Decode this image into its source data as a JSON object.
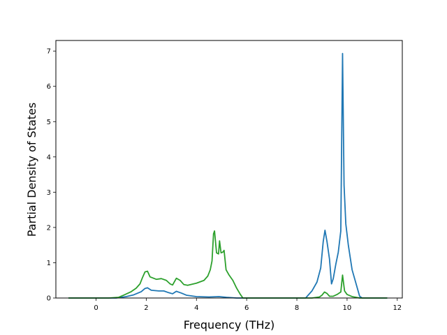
{
  "chart_data": {
    "type": "line",
    "title": "",
    "xlabel": "Frequency (THz)",
    "ylabel": "Partial Density of States",
    "xlim": [
      -1.6,
      12.2
    ],
    "ylim": [
      0,
      7.3
    ],
    "xticks": [
      0,
      2,
      4,
      6,
      8,
      10,
      12
    ],
    "yticks": [
      0,
      1,
      2,
      3,
      4,
      5,
      6,
      7
    ],
    "grid": false,
    "legend": "none",
    "series": [
      {
        "color": "#1f77b4",
        "points": [
          [
            -1.1,
            0.0
          ],
          [
            0.8,
            0.0
          ],
          [
            1.2,
            0.04
          ],
          [
            1.5,
            0.09
          ],
          [
            1.8,
            0.18
          ],
          [
            1.95,
            0.27
          ],
          [
            2.05,
            0.29
          ],
          [
            2.2,
            0.22
          ],
          [
            2.5,
            0.2
          ],
          [
            2.7,
            0.2
          ],
          [
            2.9,
            0.15
          ],
          [
            3.05,
            0.12
          ],
          [
            3.2,
            0.19
          ],
          [
            3.4,
            0.14
          ],
          [
            3.6,
            0.08
          ],
          [
            4.0,
            0.04
          ],
          [
            4.5,
            0.03
          ],
          [
            4.9,
            0.04
          ],
          [
            5.2,
            0.02
          ],
          [
            5.6,
            0.0
          ],
          [
            8.35,
            0.0
          ],
          [
            8.6,
            0.2
          ],
          [
            8.8,
            0.45
          ],
          [
            8.95,
            0.85
          ],
          [
            9.05,
            1.6
          ],
          [
            9.12,
            1.92
          ],
          [
            9.2,
            1.6
          ],
          [
            9.3,
            1.1
          ],
          [
            9.38,
            0.4
          ],
          [
            9.45,
            0.55
          ],
          [
            9.55,
            0.95
          ],
          [
            9.65,
            1.3
          ],
          [
            9.75,
            1.9
          ],
          [
            9.82,
            6.93
          ],
          [
            9.88,
            3.2
          ],
          [
            9.95,
            2.1
          ],
          [
            10.05,
            1.5
          ],
          [
            10.2,
            0.8
          ],
          [
            10.5,
            0.05
          ],
          [
            10.6,
            0.0
          ],
          [
            11.6,
            0.0
          ]
        ]
      },
      {
        "color": "#2ca02c",
        "points": [
          [
            -1.1,
            0.0
          ],
          [
            0.5,
            0.0
          ],
          [
            0.9,
            0.02
          ],
          [
            1.1,
            0.08
          ],
          [
            1.4,
            0.18
          ],
          [
            1.6,
            0.28
          ],
          [
            1.75,
            0.4
          ],
          [
            1.85,
            0.58
          ],
          [
            1.95,
            0.74
          ],
          [
            2.05,
            0.76
          ],
          [
            2.15,
            0.6
          ],
          [
            2.4,
            0.53
          ],
          [
            2.6,
            0.55
          ],
          [
            2.8,
            0.5
          ],
          [
            2.95,
            0.4
          ],
          [
            3.05,
            0.37
          ],
          [
            3.2,
            0.56
          ],
          [
            3.35,
            0.5
          ],
          [
            3.5,
            0.38
          ],
          [
            3.65,
            0.36
          ],
          [
            4.0,
            0.42
          ],
          [
            4.3,
            0.5
          ],
          [
            4.45,
            0.62
          ],
          [
            4.55,
            0.8
          ],
          [
            4.62,
            1.05
          ],
          [
            4.68,
            1.82
          ],
          [
            4.72,
            1.9
          ],
          [
            4.8,
            1.28
          ],
          [
            4.88,
            1.25
          ],
          [
            4.92,
            1.62
          ],
          [
            4.98,
            1.28
          ],
          [
            5.05,
            1.3
          ],
          [
            5.1,
            1.35
          ],
          [
            5.18,
            0.8
          ],
          [
            5.3,
            0.65
          ],
          [
            5.45,
            0.5
          ],
          [
            5.6,
            0.28
          ],
          [
            5.75,
            0.1
          ],
          [
            5.85,
            0.0
          ],
          [
            8.6,
            0.0
          ],
          [
            8.9,
            0.03
          ],
          [
            9.0,
            0.08
          ],
          [
            9.1,
            0.17
          ],
          [
            9.2,
            0.13
          ],
          [
            9.3,
            0.05
          ],
          [
            9.45,
            0.05
          ],
          [
            9.6,
            0.1
          ],
          [
            9.75,
            0.17
          ],
          [
            9.82,
            0.65
          ],
          [
            9.9,
            0.2
          ],
          [
            10.0,
            0.1
          ],
          [
            10.2,
            0.04
          ],
          [
            10.5,
            0.0
          ],
          [
            11.6,
            0.0
          ]
        ]
      }
    ]
  }
}
